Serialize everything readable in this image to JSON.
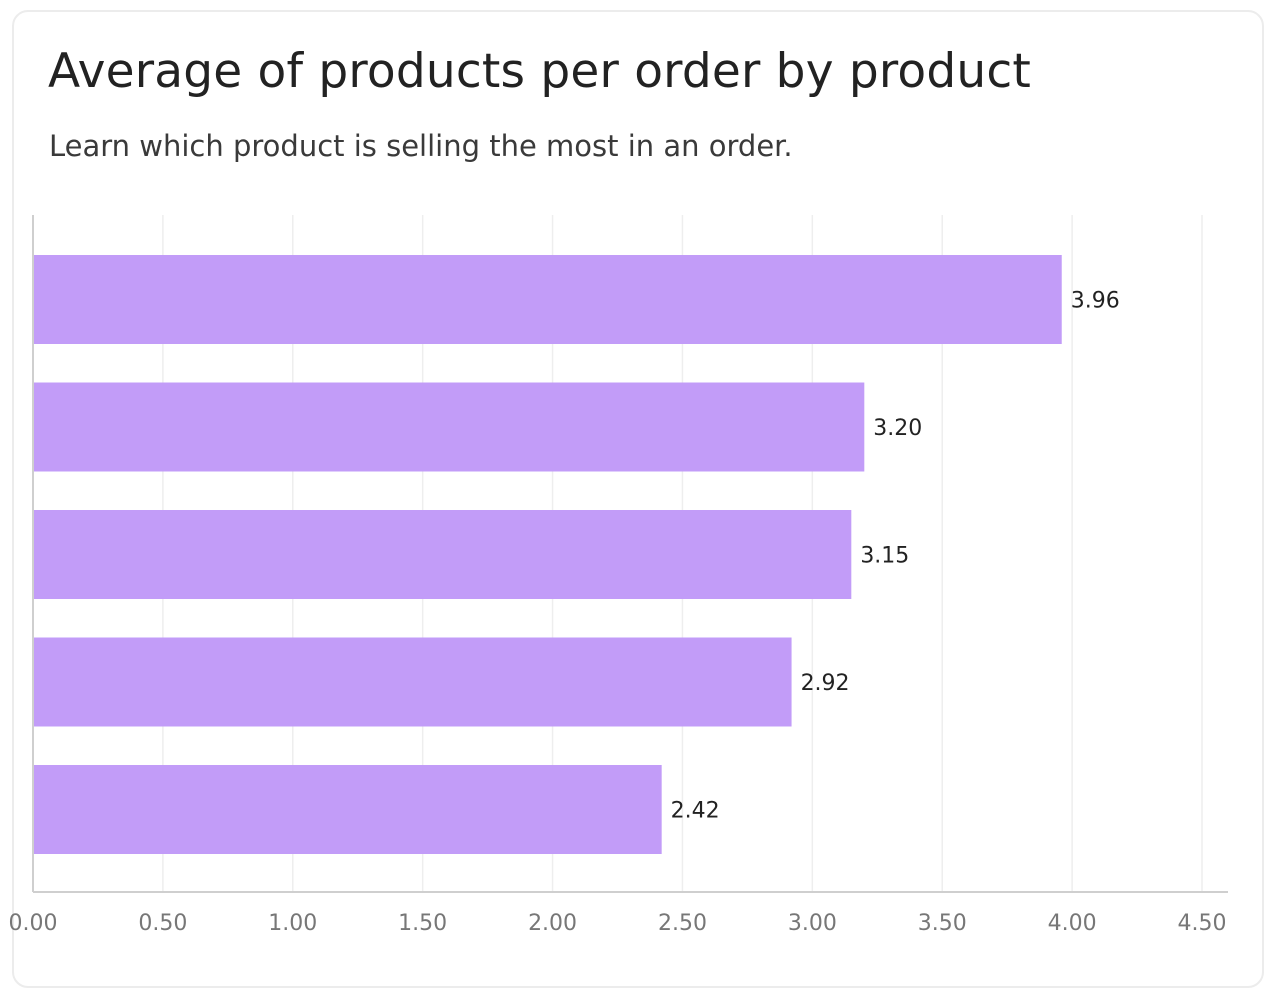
{
  "header": {
    "title": "Average of products per order by product",
    "subtitle": "Learn which product is selling the most in an order."
  },
  "colors": {
    "bar": "#c29cf8",
    "grid": "#eeeeee",
    "axis": "#cfcfcf"
  },
  "chart_data": {
    "type": "bar",
    "orientation": "horizontal",
    "title": "Average of products per order by product",
    "subtitle": "Learn which product is selling the most in an order.",
    "xlabel": "",
    "ylabel": "",
    "xlim": [
      0,
      4.6
    ],
    "ticks": [
      0,
      0.5,
      1,
      1.5,
      2,
      2.5,
      3,
      3.5,
      4,
      4.5
    ],
    "tick_labels": [
      "0.00",
      "0.50",
      "1.00",
      "1.50",
      "2.00",
      "2.50",
      "3.00",
      "3.50",
      "4.00",
      "4.50"
    ],
    "categories": [
      "",
      "",
      "",
      "",
      ""
    ],
    "values": [
      3.96,
      3.2,
      3.15,
      2.92,
      2.42
    ],
    "value_labels": [
      "3.96",
      "3.20",
      "3.15",
      "2.92",
      "2.42"
    ],
    "grid": true,
    "legend": "none"
  }
}
